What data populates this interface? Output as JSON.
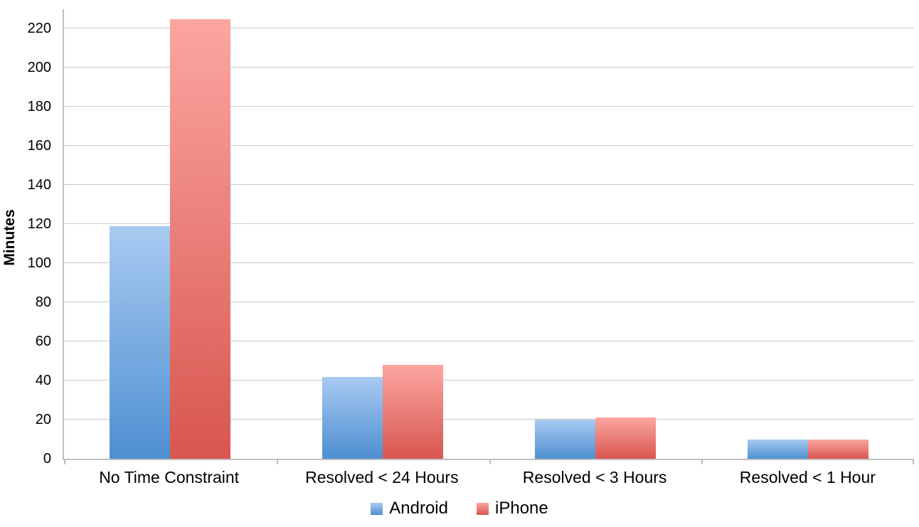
{
  "chart_data": {
    "type": "bar",
    "categories": [
      "No Time Constraint",
      "Resolved < 24 Hours",
      "Resolved < 3 Hours",
      "Resolved < 1 Hour"
    ],
    "series": [
      {
        "name": "Android",
        "values": [
          119,
          42,
          20,
          10
        ],
        "color_top": "#a8caf1",
        "color_bottom": "#4e8fd1"
      },
      {
        "name": "iPhone",
        "values": [
          225,
          48,
          21,
          10
        ],
        "color_top": "#fca6a1",
        "color_bottom": "#d8564f"
      }
    ],
    "title": "",
    "xlabel": "",
    "ylabel": "Minutes",
    "ylim": [
      0,
      230
    ],
    "yticks": [
      0,
      20,
      40,
      60,
      80,
      100,
      120,
      140,
      160,
      180,
      200,
      220
    ],
    "grid": true,
    "legend_position": "bottom",
    "colors": {
      "gridline": "#cbcbcb",
      "axis": "#bfbfbf",
      "text": "#000000",
      "background": "#ffffff"
    }
  }
}
